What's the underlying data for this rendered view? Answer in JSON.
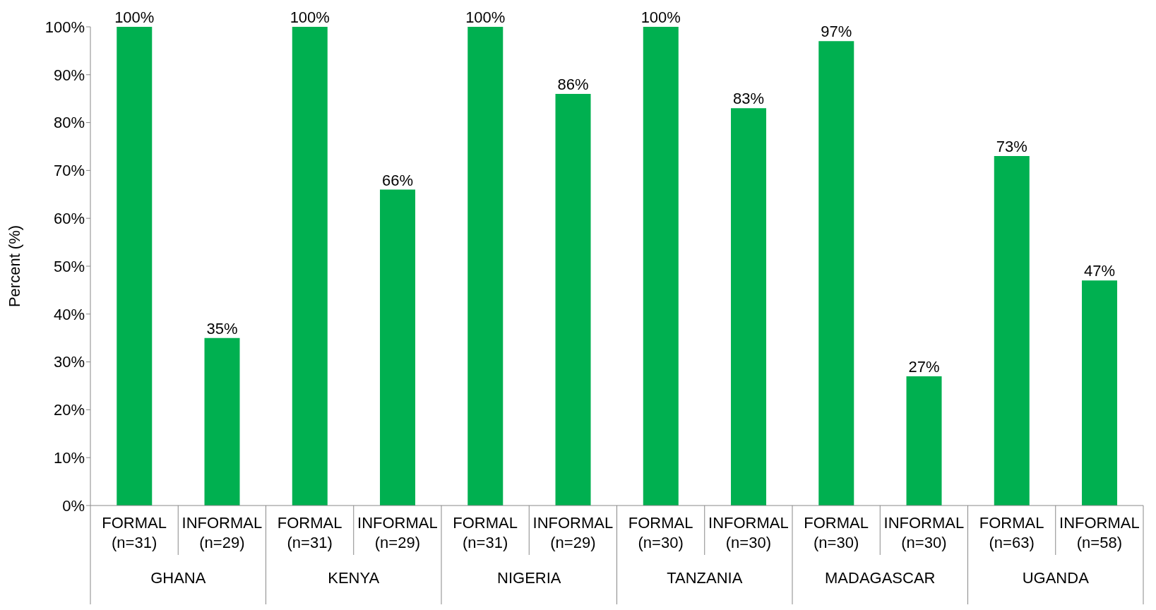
{
  "chart_data": {
    "type": "bar",
    "ylabel": "Percent (%)",
    "categories": [
      "FORMAL\n(n=31)",
      "INFORMAL\n(n=29)",
      "FORMAL\n(n=31)",
      "INFORMAL\n(n=29)",
      "FORMAL\n(n=31)",
      "INFORMAL\n(n=29)",
      "FORMAL\n(n=30)",
      "INFORMAL\n(n=30)",
      "FORMAL\n(n=30)",
      "INFORMAL\n(n=30)",
      "FORMAL\n(n=63)",
      "INFORMAL\n(n=58)"
    ],
    "values": [
      100,
      35,
      100,
      66,
      100,
      86,
      100,
      83,
      97,
      27,
      73,
      47
    ],
    "value_labels": [
      "100%",
      "35%",
      "100%",
      "66%",
      "100%",
      "86%",
      "100%",
      "83%",
      "97%",
      "27%",
      "73%",
      "47%"
    ],
    "color": "#00b050",
    "ylim": [
      0,
      100
    ],
    "yticks": [
      {
        "value": 0,
        "label": "0%"
      },
      {
        "value": 10,
        "label": "10%"
      },
      {
        "value": 20,
        "label": "20%"
      },
      {
        "value": 30,
        "label": "30%"
      },
      {
        "value": 40,
        "label": "40%"
      },
      {
        "value": 50,
        "label": "50%"
      },
      {
        "value": 60,
        "label": "60%"
      },
      {
        "value": 70,
        "label": "70%"
      },
      {
        "value": 80,
        "label": "80%"
      },
      {
        "value": 90,
        "label": "90%"
      },
      {
        "value": 100,
        "label": "100%"
      }
    ],
    "annotations": [
      "GHANA",
      "KENYA",
      "NIGERIA",
      "TANZANIA",
      "MADAGASCAR",
      "UGANDA"
    ]
  }
}
